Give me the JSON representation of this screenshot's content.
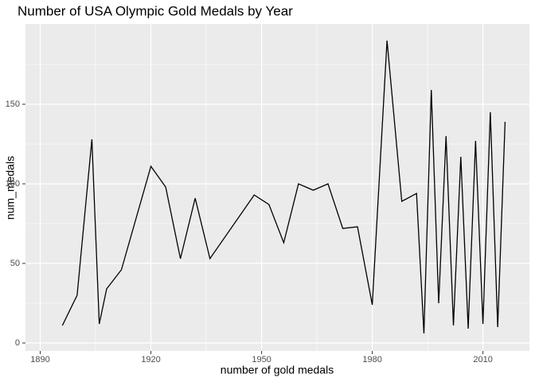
{
  "chart_data": {
    "type": "line",
    "title": "Number of USA Olympic Gold Medals by Year",
    "x_label": "number of gold medals",
    "y_label": "num_medals",
    "x": [
      1896,
      1900,
      1904,
      1906,
      1908,
      1912,
      1920,
      1924,
      1928,
      1932,
      1936,
      1948,
      1952,
      1956,
      1960,
      1964,
      1968,
      1972,
      1976,
      1980,
      1984,
      1988,
      1992,
      1994,
      1996,
      1998,
      2000,
      2002,
      2004,
      2006,
      2008,
      2010,
      2012,
      2014,
      2016
    ],
    "series": [
      {
        "color": "#000000",
        "values": [
          11,
          30,
          128,
          12,
          34,
          46,
          111,
          98,
          53,
          91,
          53,
          93,
          87,
          63,
          100,
          96,
          100,
          72,
          73,
          24,
          190,
          89,
          94,
          6,
          159,
          25,
          130,
          11,
          117,
          9,
          127,
          12,
          145,
          10,
          139
        ]
      }
    ],
    "xlim": [
      1886,
      2022.6
    ],
    "ylim": [
      -5,
      200.5
    ],
    "xticks": [
      1890,
      1920,
      1950,
      1980,
      2010
    ],
    "yticks": [
      0,
      50,
      100,
      150
    ],
    "grid": true,
    "panel_color": "#ebebeb"
  }
}
